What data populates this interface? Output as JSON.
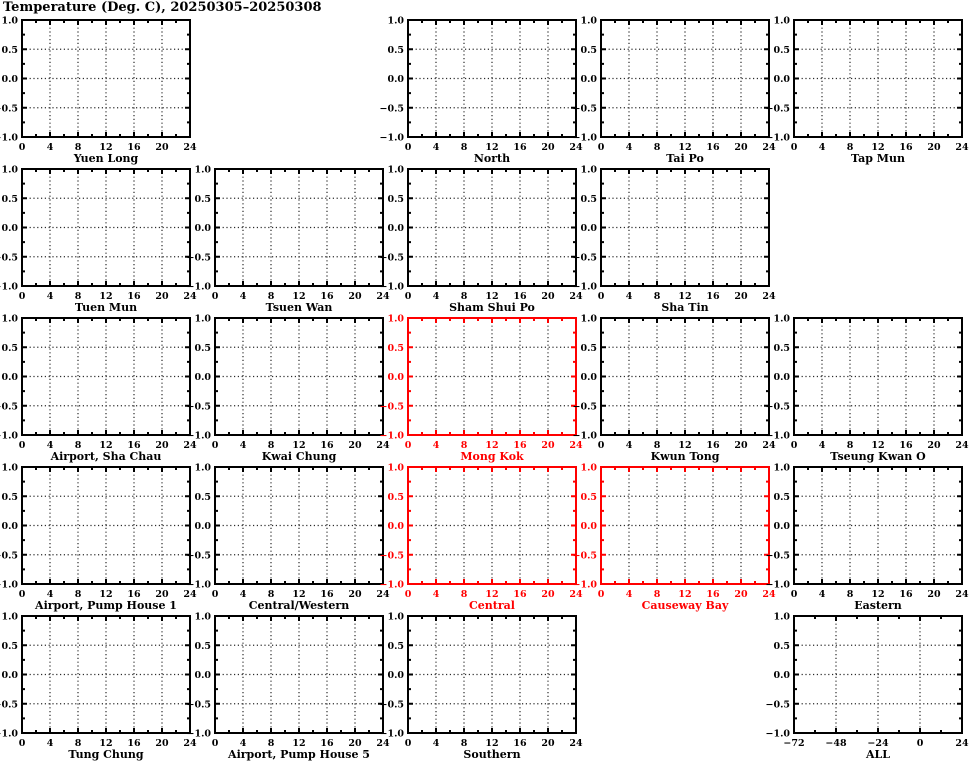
{
  "figure": {
    "title": "Temperature (Deg. C), 20250305–20250308"
  },
  "colors": {
    "black": "#000000",
    "red": "#ff0000",
    "grid": "#2b2b2b",
    "background": "#ffffff"
  },
  "chart_data": {
    "type": "line",
    "title": "Temperature (Deg. C), 20250305–20250308",
    "grid": {
      "rows": 5,
      "cols": 5,
      "grid_on": true
    },
    "defaults": {
      "xlim": [
        0,
        24
      ],
      "ylim": [
        -1.0,
        1.0
      ],
      "x_major_ticks": [
        0,
        4,
        8,
        12,
        16,
        20,
        24
      ],
      "x_minor_ticks": [
        2,
        6,
        10,
        14,
        18,
        22
      ],
      "y_major_ticks": [
        1.0,
        0.5,
        0.0,
        -0.5,
        -1.0
      ],
      "y_minor_ticks": [
        0.75,
        0.25,
        -0.25,
        -0.75
      ],
      "x_tick_labels": [
        "0",
        "4",
        "8",
        "12",
        "16",
        "20",
        "24"
      ],
      "y_tick_labels": [
        "1.0",
        "0.5",
        "0.0",
        "−0.5",
        "−1.0"
      ],
      "series": []
    },
    "subplots": [
      {
        "row": 0,
        "col": 0,
        "title": "Yuen Long",
        "color": "black"
      },
      {
        "row": 0,
        "col": 2,
        "title": "North",
        "color": "black"
      },
      {
        "row": 0,
        "col": 3,
        "title": "Tai Po",
        "color": "black"
      },
      {
        "row": 0,
        "col": 4,
        "title": "Tap Mun",
        "color": "black"
      },
      {
        "row": 1,
        "col": 0,
        "title": "Tuen Mun",
        "color": "black"
      },
      {
        "row": 1,
        "col": 1,
        "title": "Tsuen Wan",
        "color": "black"
      },
      {
        "row": 1,
        "col": 2,
        "title": "Sham Shui Po",
        "color": "black"
      },
      {
        "row": 1,
        "col": 3,
        "title": "Sha Tin",
        "color": "black"
      },
      {
        "row": 2,
        "col": 0,
        "title": "Airport, Sha Chau",
        "color": "black"
      },
      {
        "row": 2,
        "col": 1,
        "title": "Kwai Chung",
        "color": "black"
      },
      {
        "row": 2,
        "col": 2,
        "title": "Mong Kok",
        "color": "red"
      },
      {
        "row": 2,
        "col": 3,
        "title": "Kwun Tong",
        "color": "black"
      },
      {
        "row": 2,
        "col": 4,
        "title": "Tseung Kwan O",
        "color": "black"
      },
      {
        "row": 3,
        "col": 0,
        "title": "Airport, Pump House 1",
        "color": "black"
      },
      {
        "row": 3,
        "col": 1,
        "title": "Central/Western",
        "color": "black"
      },
      {
        "row": 3,
        "col": 2,
        "title": "Central",
        "color": "red"
      },
      {
        "row": 3,
        "col": 3,
        "title": "Causeway Bay",
        "color": "red"
      },
      {
        "row": 3,
        "col": 4,
        "title": "Eastern",
        "color": "black"
      },
      {
        "row": 4,
        "col": 0,
        "title": "Tung Chung",
        "color": "black"
      },
      {
        "row": 4,
        "col": 1,
        "title": "Airport, Pump House 5",
        "color": "black"
      },
      {
        "row": 4,
        "col": 2,
        "title": "Southern",
        "color": "black"
      },
      {
        "row": 4,
        "col": 4,
        "title": "ALL",
        "color": "black",
        "xlim": [
          -72,
          24
        ],
        "x_major_ticks": [
          -72,
          -48,
          -24,
          0,
          24
        ],
        "x_minor_ticks": [
          -60,
          -36,
          -12,
          12
        ],
        "x_tick_labels": [
          "−72",
          "−48",
          "−24",
          "0",
          "24"
        ]
      }
    ]
  }
}
